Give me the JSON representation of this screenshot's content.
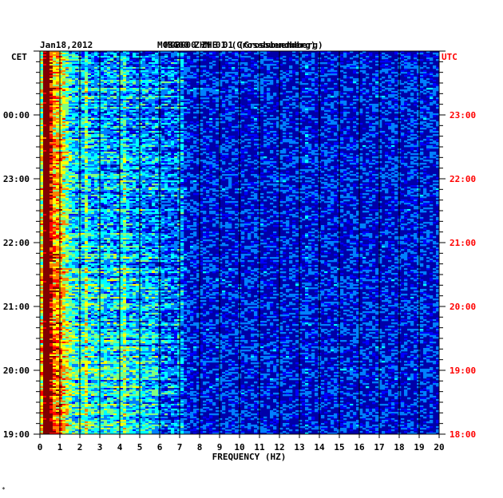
{
  "chart_data": {
    "type": "heatmap",
    "title": "MGBG00 ZHE 01 (Grossbuendberg)",
    "title_overprint": "MGBG00 ZHN 01 (Grossbuendberg)",
    "date": "Jan18,2012",
    "xlabel": "FREQUENCY (HZ)",
    "xlim": [
      0,
      20
    ],
    "x_ticks": [
      "0",
      "1",
      "2",
      "3",
      "4",
      "5",
      "6",
      "7",
      "8",
      "9",
      "10",
      "11",
      "12",
      "13",
      "14",
      "15",
      "16",
      "17",
      "18",
      "19",
      "20"
    ],
    "left_axis_label": "CET",
    "right_axis_label": "UTC",
    "cet_ticks": [
      {
        "label": "00:00",
        "hour_utc": 23
      },
      {
        "label": "23:00",
        "hour_utc": 22
      },
      {
        "label": "22:00",
        "hour_utc": 21
      },
      {
        "label": "21:00",
        "hour_utc": 20
      },
      {
        "label": "20:00",
        "hour_utc": 19
      },
      {
        "label": "19:00",
        "hour_utc": 18
      }
    ],
    "utc_ticks": [
      {
        "label": "23:00",
        "hour_utc": 23
      },
      {
        "label": "22:00",
        "hour_utc": 22
      },
      {
        "label": "21:00",
        "hour_utc": 21
      },
      {
        "label": "20:00",
        "hour_utc": 20
      },
      {
        "label": "19:00",
        "hour_utc": 19
      },
      {
        "label": "18:00",
        "hour_utc": 18
      }
    ],
    "ylim_utc_hours": [
      18,
      24
    ],
    "colormap": [
      "#00008f",
      "#0000ff",
      "#0080ff",
      "#00ffff",
      "#80ff80",
      "#ffff00",
      "#ff8000",
      "#ff0000",
      "#800000"
    ],
    "background_color": "#0000a8",
    "gridline_color": "#000000",
    "right_label_color": "#ff0000"
  },
  "footer_mark": "*"
}
